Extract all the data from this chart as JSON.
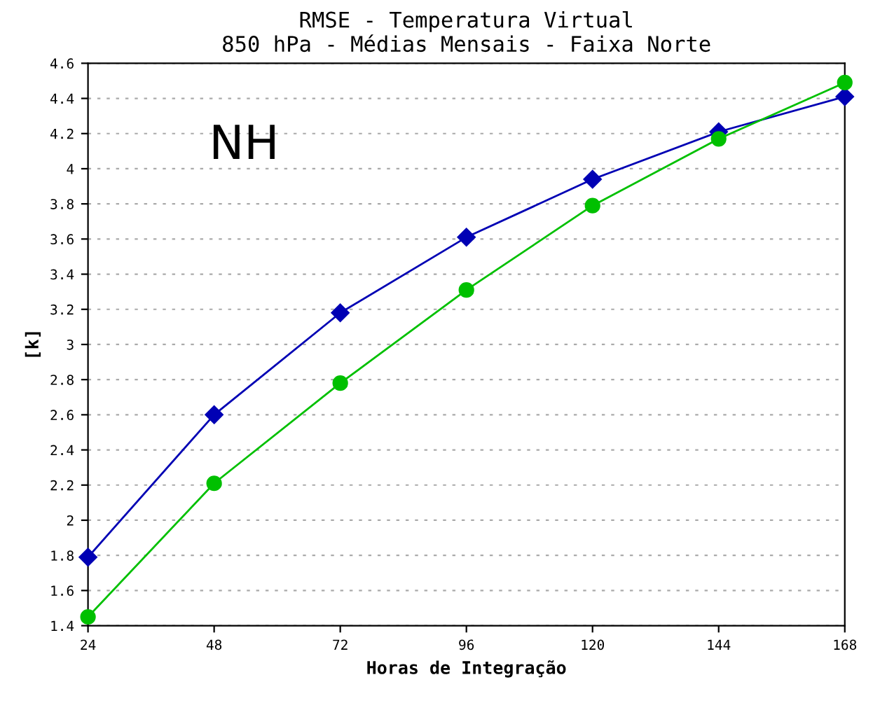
{
  "chart_data": {
    "type": "line",
    "title": "RMSE - Temperatura Virtual\n850 hPa - Médias Mensais - Faixa Norte",
    "xlabel": "Horas de Integração",
    "ylabel": "[k]",
    "annotations": [
      "NH"
    ],
    "x": [
      24,
      48,
      72,
      96,
      120,
      144,
      168
    ],
    "series": [
      {
        "color": "#0000b4",
        "marker": "diamond",
        "values": [
          1.79,
          2.6,
          3.18,
          3.61,
          3.94,
          4.21,
          4.41
        ]
      },
      {
        "color": "#00c000",
        "marker": "circle",
        "values": [
          1.45,
          2.21,
          2.78,
          3.31,
          3.79,
          4.17,
          4.49
        ]
      }
    ],
    "xlim": [
      24,
      168
    ],
    "xticks": [
      24,
      48,
      72,
      96,
      120,
      144,
      168
    ],
    "ylim": [
      1.4,
      4.6
    ],
    "yticks": [
      1.4,
      1.6,
      1.8,
      2,
      2.2,
      2.4,
      2.6,
      2.8,
      3,
      3.2,
      3.4,
      3.6,
      3.8,
      4,
      4.2,
      4.4,
      4.6
    ],
    "grid": "y",
    "legend": false,
    "line_style": "solid"
  }
}
